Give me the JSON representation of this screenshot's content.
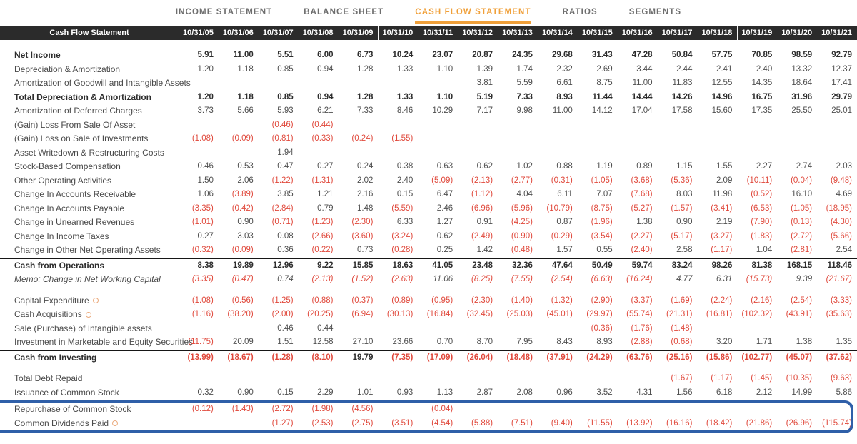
{
  "tabs": [
    {
      "label": "INCOME STATEMENT",
      "active": false
    },
    {
      "label": "BALANCE SHEET",
      "active": false
    },
    {
      "label": "CASH FLOW STATEMENT",
      "active": true
    },
    {
      "label": "RATIOS",
      "active": false
    },
    {
      "label": "SEGMENTS",
      "active": false
    }
  ],
  "colors": {
    "active_tab_orange": "#F0A03A",
    "negative_red": "#E0493C",
    "header_bg": "#2B2B2B",
    "highlight_blue": "#2F5FA8",
    "icon_orange": "#EBAA7C"
  },
  "table": {
    "title": "Cash Flow Statement",
    "columns": [
      "10/31/05",
      "10/31/06",
      "10/31/07",
      "10/31/08",
      "10/31/09",
      "10/31/10",
      "10/31/11",
      "10/31/12",
      "10/31/13",
      "10/31/14",
      "10/31/15",
      "10/31/16",
      "10/31/17",
      "10/31/18",
      "10/31/19",
      "10/31/20",
      "10/31/21"
    ],
    "rows": [
      {
        "label": "Net Income",
        "style": "bold",
        "values": [
          "5.91",
          "11.00",
          "5.51",
          "6.00",
          "6.73",
          "10.24",
          "23.07",
          "20.87",
          "24.35",
          "29.68",
          "31.43",
          "47.28",
          "50.84",
          "57.75",
          "70.85",
          "98.59",
          "92.79"
        ]
      },
      {
        "label": "Depreciation & Amortization",
        "values": [
          "1.20",
          "1.18",
          "0.85",
          "0.94",
          "1.28",
          "1.33",
          "1.10",
          "1.39",
          "1.74",
          "2.32",
          "2.69",
          "3.44",
          "2.44",
          "2.41",
          "2.40",
          "13.32",
          "12.37"
        ]
      },
      {
        "label": "Amortization of Goodwill and Intangible Assets",
        "values": [
          "",
          "",
          "",
          "",
          "",
          "",
          "",
          "3.81",
          "5.59",
          "6.61",
          "8.75",
          "11.00",
          "11.83",
          "12.55",
          "14.35",
          "18.64",
          "17.41"
        ]
      },
      {
        "label": "Total Depreciation & Amortization",
        "style": "bold",
        "values": [
          "1.20",
          "1.18",
          "0.85",
          "0.94",
          "1.28",
          "1.33",
          "1.10",
          "5.19",
          "7.33",
          "8.93",
          "11.44",
          "14.44",
          "14.26",
          "14.96",
          "16.75",
          "31.96",
          "29.79"
        ]
      },
      {
        "label": "Amortization of Deferred Charges",
        "values": [
          "3.73",
          "5.66",
          "5.93",
          "6.21",
          "7.33",
          "8.46",
          "10.29",
          "7.17",
          "9.98",
          "11.00",
          "14.12",
          "17.04",
          "17.58",
          "15.60",
          "17.35",
          "25.50",
          "25.01"
        ]
      },
      {
        "label": "(Gain) Loss From Sale Of Asset",
        "values": [
          "",
          "",
          "(0.46)",
          "(0.44)",
          "",
          "",
          "",
          "",
          "",
          "",
          "",
          "",
          "",
          "",
          "",
          "",
          ""
        ]
      },
      {
        "label": "(Gain) Loss on Sale of Investments",
        "values": [
          "(1.08)",
          "(0.09)",
          "(0.81)",
          "(0.33)",
          "(0.24)",
          "(1.55)",
          "",
          "",
          "",
          "",
          "",
          "",
          "",
          "",
          "",
          "",
          ""
        ]
      },
      {
        "label": "Asset Writedown & Restructuring Costs",
        "values": [
          "",
          "",
          "1.94",
          "",
          "",
          "",
          "",
          "",
          "",
          "",
          "",
          "",
          "",
          "",
          "",
          "",
          ""
        ]
      },
      {
        "label": "Stock-Based Compensation",
        "values": [
          "0.46",
          "0.53",
          "0.47",
          "0.27",
          "0.24",
          "0.38",
          "0.63",
          "0.62",
          "1.02",
          "0.88",
          "1.19",
          "0.89",
          "1.15",
          "1.55",
          "2.27",
          "2.74",
          "2.03"
        ]
      },
      {
        "label": "Other Operating Activities",
        "values": [
          "1.50",
          "2.06",
          "(1.22)",
          "(1.31)",
          "2.02",
          "2.40",
          "(5.09)",
          "(2.13)",
          "(2.77)",
          "(0.31)",
          "(1.05)",
          "(3.68)",
          "(5.36)",
          "2.09",
          "(10.11)",
          "(0.04)",
          "(9.48)"
        ]
      },
      {
        "label": "Change In Accounts Receivable",
        "values": [
          "1.06",
          "(3.89)",
          "3.85",
          "1.21",
          "2.16",
          "0.15",
          "6.47",
          "(1.12)",
          "4.04",
          "6.11",
          "7.07",
          "(7.68)",
          "8.03",
          "11.98",
          "(0.52)",
          "16.10",
          "4.69"
        ]
      },
      {
        "label": "Change In Accounts Payable",
        "values": [
          "(3.35)",
          "(0.42)",
          "(2.84)",
          "0.79",
          "1.48",
          "(5.59)",
          "2.46",
          "(6.96)",
          "(5.96)",
          "(10.79)",
          "(8.75)",
          "(5.27)",
          "(1.57)",
          "(3.41)",
          "(6.53)",
          "(1.05)",
          "(18.95)"
        ]
      },
      {
        "label": "Change in Unearned Revenues",
        "values": [
          "(1.01)",
          "0.90",
          "(0.71)",
          "(1.23)",
          "(2.30)",
          "6.33",
          "1.27",
          "0.91",
          "(4.25)",
          "0.87",
          "(1.96)",
          "1.38",
          "0.90",
          "2.19",
          "(7.90)",
          "(0.13)",
          "(4.30)"
        ]
      },
      {
        "label": "Change In Income Taxes",
        "values": [
          "0.27",
          "3.03",
          "0.08",
          "(2.66)",
          "(3.60)",
          "(3.24)",
          "0.62",
          "(2.49)",
          "(0.90)",
          "(0.29)",
          "(3.54)",
          "(2.27)",
          "(5.17)",
          "(3.27)",
          "(1.83)",
          "(2.72)",
          "(5.66)"
        ]
      },
      {
        "label": "Change in Other Net Operating Assets",
        "values": [
          "(0.32)",
          "(0.09)",
          "0.36",
          "(0.22)",
          "0.73",
          "(0.28)",
          "0.25",
          "1.42",
          "(0.48)",
          "1.57",
          "0.55",
          "(2.40)",
          "2.58",
          "(1.17)",
          "1.04",
          "(2.81)",
          "2.54"
        ]
      },
      {
        "label": "Cash from Operations",
        "style": "bold",
        "topline": true,
        "values": [
          "8.38",
          "19.89",
          "12.96",
          "9.22",
          "15.85",
          "18.63",
          "41.05",
          "23.48",
          "32.36",
          "47.64",
          "50.49",
          "59.74",
          "83.24",
          "98.26",
          "81.38",
          "168.15",
          "118.46"
        ]
      },
      {
        "label": "Memo: Change in Net Working Capital",
        "style": "italic",
        "values": [
          "(3.35)",
          "(0.47)",
          "0.74",
          "(2.13)",
          "(1.52)",
          "(2.63)",
          "11.06",
          "(8.25)",
          "(7.55)",
          "(2.54)",
          "(6.63)",
          "(16.24)",
          "4.77",
          "6.31",
          "(15.73)",
          "9.39",
          "(21.67)"
        ]
      },
      {
        "label": "Capital Expenditure",
        "icon": true,
        "gap": true,
        "values": [
          "(1.08)",
          "(0.56)",
          "(1.25)",
          "(0.88)",
          "(0.37)",
          "(0.89)",
          "(0.95)",
          "(2.30)",
          "(1.40)",
          "(1.32)",
          "(2.90)",
          "(3.37)",
          "(1.69)",
          "(2.24)",
          "(2.16)",
          "(2.54)",
          "(3.33)"
        ]
      },
      {
        "label": "Cash Acquisitions",
        "icon": true,
        "values": [
          "(1.16)",
          "(38.20)",
          "(2.00)",
          "(20.25)",
          "(6.94)",
          "(30.13)",
          "(16.84)",
          "(32.45)",
          "(25.03)",
          "(45.01)",
          "(29.97)",
          "(55.74)",
          "(21.31)",
          "(16.81)",
          "(102.32)",
          "(43.91)",
          "(35.63)"
        ]
      },
      {
        "label": "Sale (Purchase) of Intangible assets",
        "values": [
          "",
          "",
          "0.46",
          "0.44",
          "",
          "",
          "",
          "",
          "",
          "",
          "(0.36)",
          "(1.76)",
          "(1.48)",
          "",
          "",
          "",
          ""
        ]
      },
      {
        "label": "Investment in Marketable and Equity Securities",
        "values": [
          "(11.75)",
          "20.09",
          "1.51",
          "12.58",
          "27.10",
          "23.66",
          "0.70",
          "8.70",
          "7.95",
          "8.43",
          "8.93",
          "(2.88)",
          "(0.68)",
          "3.20",
          "1.71",
          "1.38",
          "1.35"
        ]
      },
      {
        "label": "Cash from Investing",
        "style": "bold",
        "topline": true,
        "values": [
          "(13.99)",
          "(18.67)",
          "(1.28)",
          "(8.10)",
          "19.79",
          "(7.35)",
          "(17.09)",
          "(26.04)",
          "(18.48)",
          "(37.91)",
          "(24.29)",
          "(63.76)",
          "(25.16)",
          "(15.86)",
          "(102.77)",
          "(45.07)",
          "(37.62)"
        ]
      },
      {
        "label": "Total Debt Repaid",
        "gap": true,
        "values": [
          "",
          "",
          "",
          "",
          "",
          "",
          "",
          "",
          "",
          "",
          "",
          "",
          "(1.67)",
          "(1.17)",
          "(1.45)",
          "(10.35)",
          "(9.63)"
        ]
      },
      {
        "label": "Issuance of Common Stock",
        "values": [
          "0.32",
          "0.90",
          "0.15",
          "2.29",
          "1.01",
          "0.93",
          "1.13",
          "2.87",
          "2.08",
          "0.96",
          "3.52",
          "4.31",
          "1.56",
          "6.18",
          "2.12",
          "14.99",
          "5.86"
        ]
      },
      {
        "label": "Repurchase of Common Stock",
        "highlight": true,
        "values": [
          "(0.12)",
          "(1.43)",
          "(2.72)",
          "(1.98)",
          "(4.56)",
          "",
          "(0.04)",
          "",
          "",
          "",
          "",
          "",
          "",
          "",
          "",
          "",
          ""
        ]
      },
      {
        "label": "Common Dividends Paid",
        "icon": true,
        "highlight": true,
        "values": [
          "",
          "",
          "(1.27)",
          "(2.53)",
          "(2.75)",
          "(3.51)",
          "(4.54)",
          "(5.88)",
          "(7.51)",
          "(9.40)",
          "(11.55)",
          "(13.92)",
          "(16.16)",
          "(18.42)",
          "(21.86)",
          "(26.96)",
          "(115.74)"
        ]
      }
    ]
  }
}
